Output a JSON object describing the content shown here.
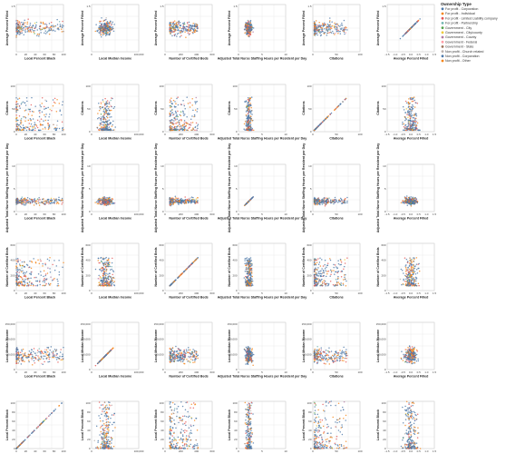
{
  "chart_data": {
    "type": "scatter",
    "title": "",
    "variables": [
      {
        "label": "Local Percent Black",
        "range": [
          0,
          100
        ],
        "ticks": [
          "0",
          "20",
          "40",
          "60",
          "80",
          "100"
        ]
      },
      {
        "label": "Local Median Income",
        "range": [
          0,
          150000
        ],
        "ticks": [
          "0",
          "100,000"
        ]
      },
      {
        "label": "Number of Certified Beds",
        "range": [
          0,
          700
        ],
        "ticks": [
          "0",
          "200",
          "400",
          "600"
        ]
      },
      {
        "label": "Adjusted Total Nurse Staffing Hours per Resident per Day",
        "range": [
          0,
          15
        ],
        "ticks": [
          "0",
          "5",
          "10"
        ]
      },
      {
        "label": "Citations",
        "range": [
          0,
          120
        ],
        "ticks": [
          "0",
          "50",
          "100"
        ]
      },
      {
        "label": "Average Percent Filled",
        "range": [
          -1.5,
          1.5
        ],
        "ticks": [
          "-1.5",
          "-1.0",
          "-0.5",
          "0.0",
          "0.5",
          "1.0",
          "1.5"
        ]
      }
    ],
    "row_order": [
      "Average Percent Filled",
      "Citations",
      "Adjusted Total Nurse Staffing Hours per Resident per Day",
      "Number of Certified Beds",
      "Local Median Income",
      "Local Percent Black"
    ],
    "column_order": [
      "Local Percent Black",
      "Local Median Income",
      "Number of Certified Beds",
      "Adjusted Total Nurse Staffing Hours per Resident per Day",
      "Citations",
      "Average Percent Filled"
    ],
    "y_tick_labels": {
      "Average Percent Filled": [
        "1.5"
      ],
      "Citations": [
        "100",
        "50",
        "0"
      ],
      "Adjusted Total Nurse Staffing Hours per Resident per Day": [
        "10",
        "5",
        "0"
      ],
      "Number of Certified Beds": [
        "600",
        "400",
        "200",
        "0"
      ],
      "Local Median Income": [
        "150,000",
        "100,000",
        "50,000",
        "0"
      ],
      "Local Percent Black": [
        "100",
        "80",
        "60",
        "40",
        "20",
        "0"
      ]
    },
    "grid": true,
    "legend": {
      "title": "Ownership Type",
      "placement": "top-right",
      "entries": [
        {
          "label": "For profit - Corporation",
          "color": "#4c78a8"
        },
        {
          "label": "For profit - Individual",
          "color": "#f58518"
        },
        {
          "label": "For profit - Limited Liability company",
          "color": "#e45756"
        },
        {
          "label": "For profit - Partnership",
          "color": "#72b7b2"
        },
        {
          "label": "Government - City",
          "color": "#54a24b"
        },
        {
          "label": "Government - City/county",
          "color": "#eeca3b"
        },
        {
          "label": "Government - County",
          "color": "#b279a2"
        },
        {
          "label": "Government - Federal",
          "color": "#ff9da6"
        },
        {
          "label": "Government - State",
          "color": "#9d755d"
        },
        {
          "label": "Non profit - Church related",
          "color": "#bab0ac"
        },
        {
          "label": "Non profit - Corporation",
          "color": "#4c78a8"
        },
        {
          "label": "Non profit - Other",
          "color": "#f58518"
        }
      ]
    }
  }
}
